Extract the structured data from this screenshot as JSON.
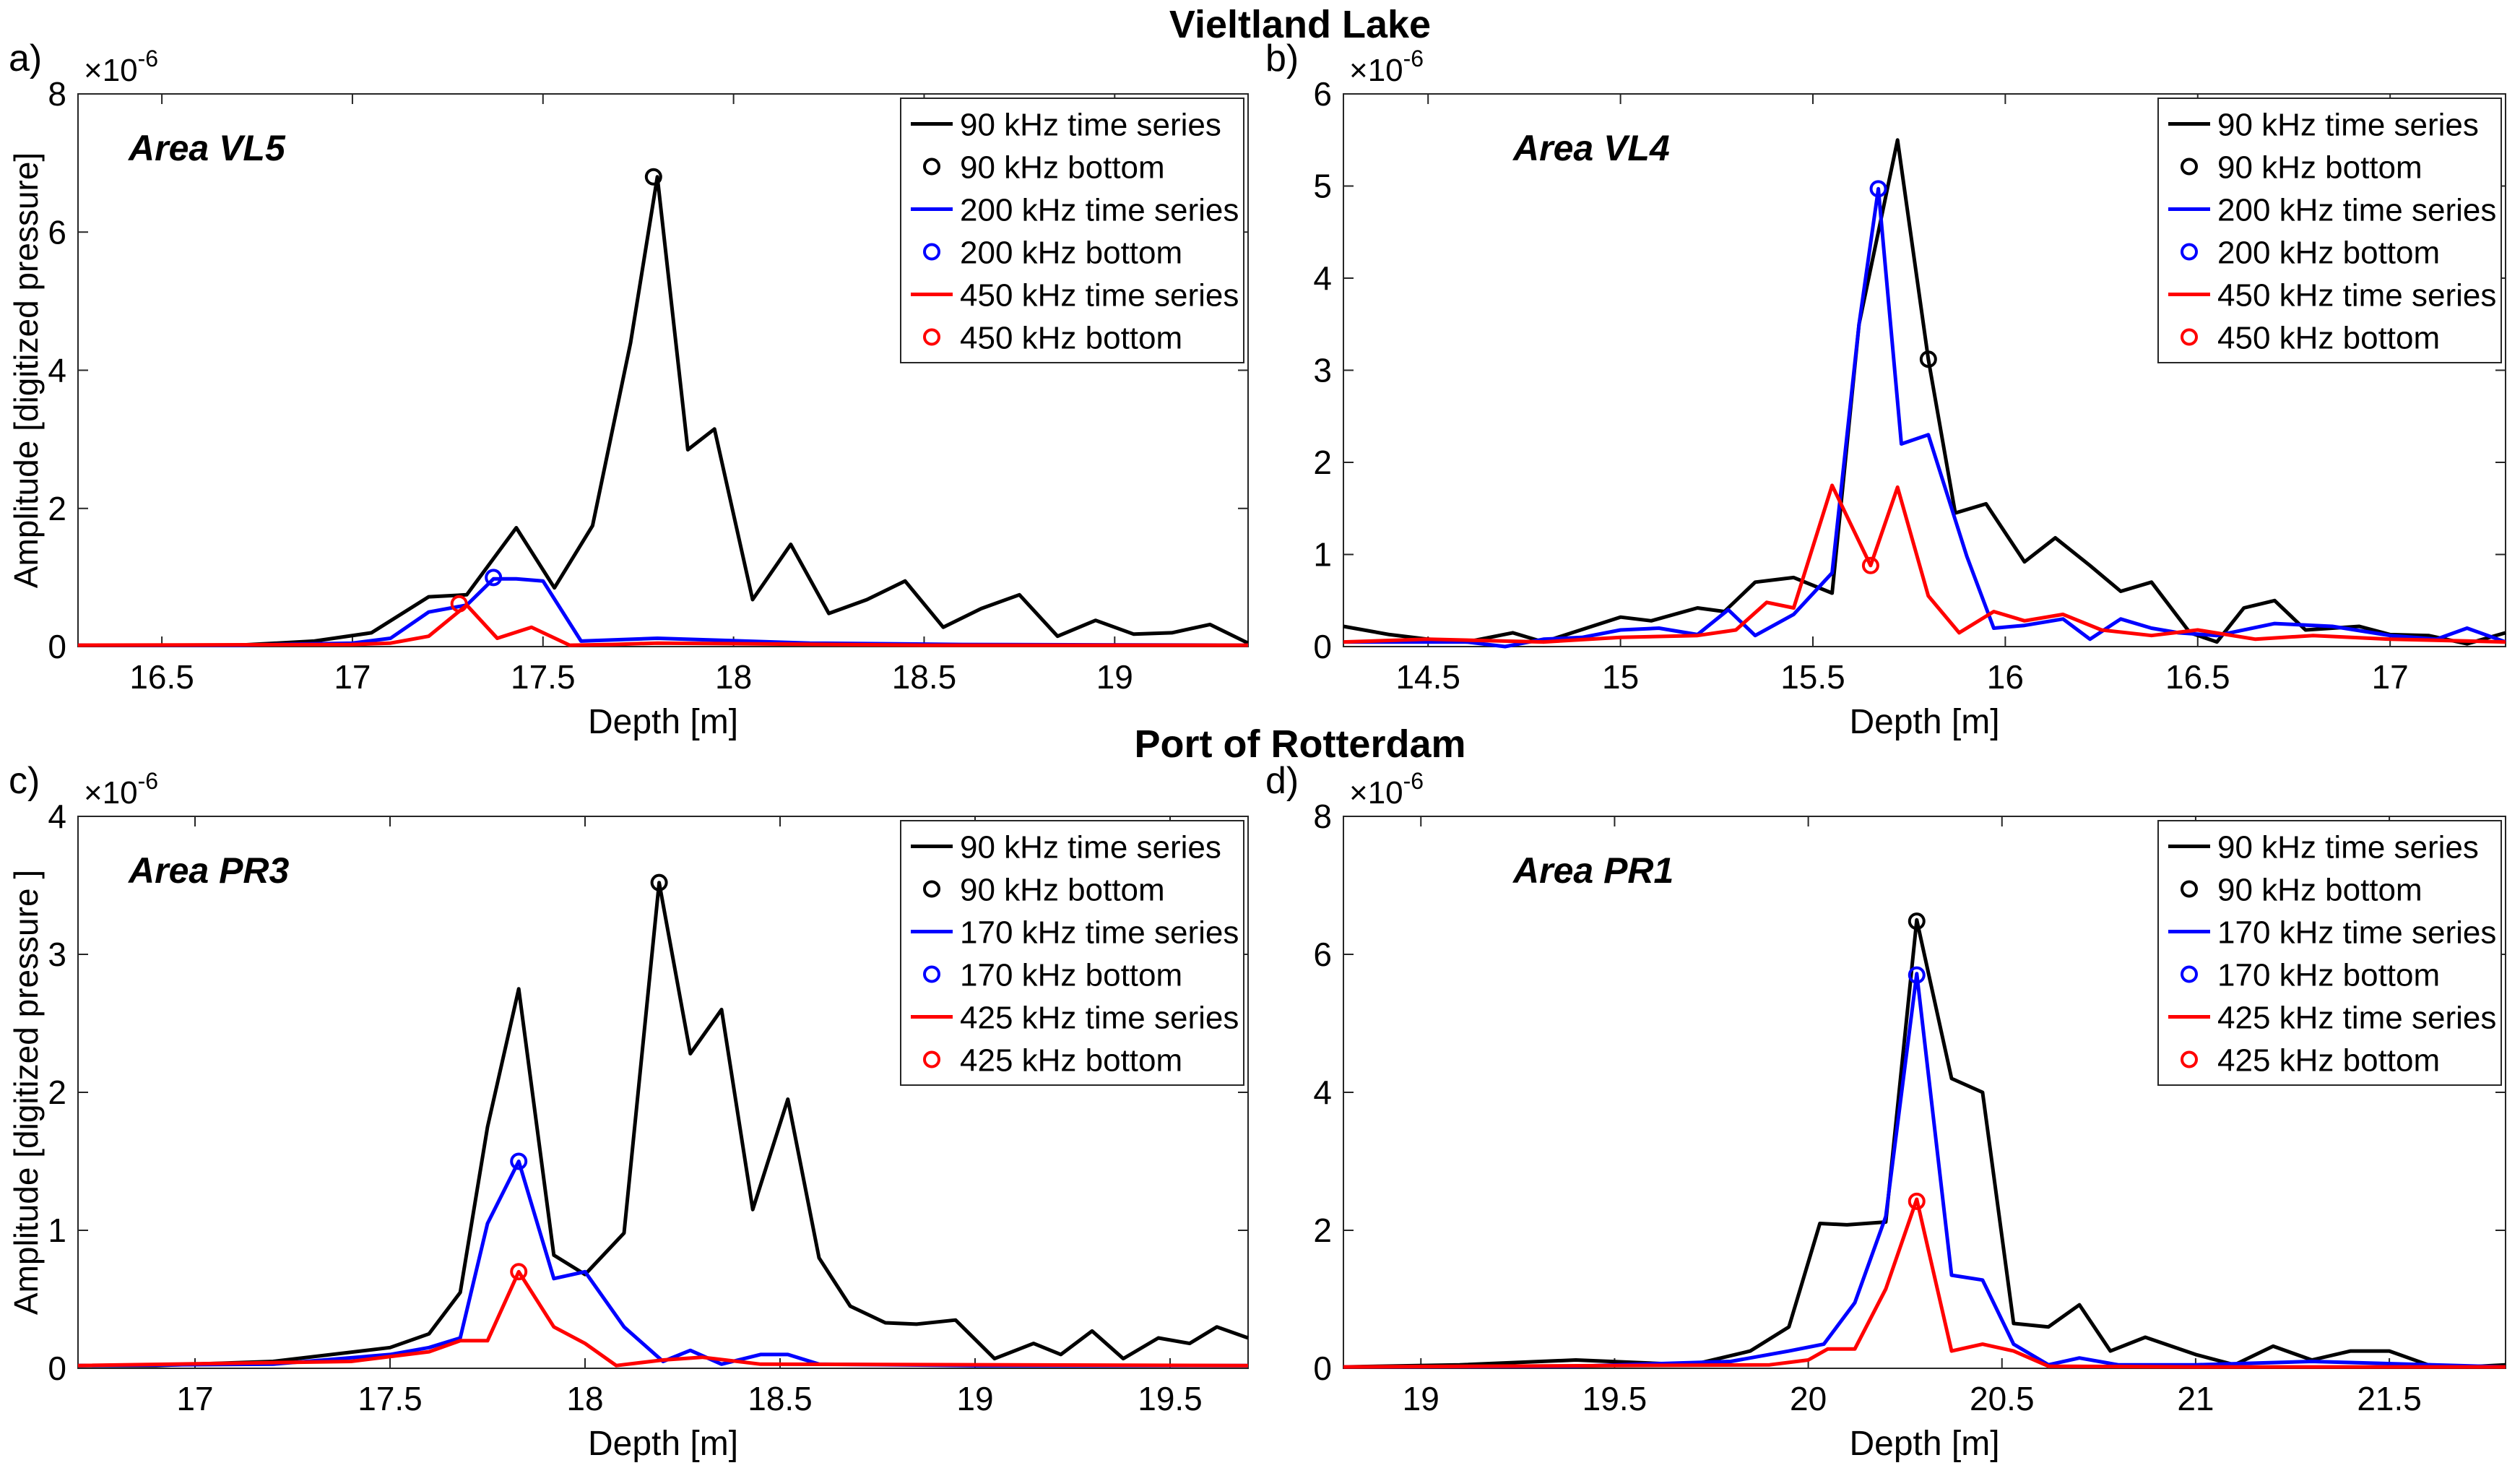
{
  "figure": {
    "group_titles": [
      "Vieltland Lake",
      "Port of Rotterdam"
    ],
    "xlabel": "Depth [m]",
    "ylabel": "Amplitude [digitized pressure]",
    "ylabel_alt": "Amplitude [digitized pressure ]",
    "exponent_label": "×10",
    "exponent_power": "-6"
  },
  "colors": {
    "black": "#000000",
    "blue": "#0000ff",
    "red": "#ff0000"
  },
  "chart_data": [
    {
      "type": "line",
      "panel_label": "a)",
      "area_label": "Area VL5",
      "xlabel": "Depth [m]",
      "ylabel": "Amplitude [digitized pressure]",
      "xlim": [
        16.28,
        19.35
      ],
      "ylim": [
        0,
        8
      ],
      "xticks": [
        16.5,
        17,
        17.5,
        18,
        18.5,
        19
      ],
      "xtick_labels": [
        "16.5",
        "17",
        "17.5",
        "18",
        "18.5",
        "19"
      ],
      "yticks": [
        0,
        2,
        4,
        6,
        8
      ],
      "ytick_labels": [
        "0",
        "2",
        "4",
        "6",
        "8"
      ],
      "y_exponent": "-6",
      "legend_position": "top-right",
      "series": [
        {
          "name": "90 kHz time series",
          "color": "#000000",
          "kind": "line",
          "x": [
            16.28,
            16.5,
            16.7,
            16.9,
            17.05,
            17.2,
            17.3,
            17.43,
            17.53,
            17.63,
            17.73,
            17.8,
            17.88,
            17.95,
            18.05,
            18.15,
            18.25,
            18.35,
            18.45,
            18.55,
            18.65,
            18.75,
            18.85,
            18.95,
            19.05,
            19.15,
            19.25,
            19.35
          ],
          "y": [
            0.02,
            0.02,
            0.02,
            0.08,
            0.2,
            0.72,
            0.75,
            1.72,
            0.85,
            1.75,
            4.4,
            6.8,
            2.85,
            3.15,
            0.68,
            1.48,
            0.48,
            0.68,
            0.95,
            0.28,
            0.55,
            0.75,
            0.15,
            0.38,
            0.18,
            0.2,
            0.32,
            0.05
          ]
        },
        {
          "name": "90 kHz bottom",
          "color": "#000000",
          "kind": "marker",
          "x": [
            17.79
          ],
          "y": [
            6.8
          ]
        },
        {
          "name": "200 kHz time series",
          "color": "#0000ff",
          "kind": "line",
          "x": [
            16.28,
            16.7,
            17.0,
            17.1,
            17.2,
            17.3,
            17.37,
            17.43,
            17.5,
            17.6,
            17.8,
            18.2,
            18.6,
            19.35
          ],
          "y": [
            0.02,
            0.02,
            0.05,
            0.12,
            0.5,
            0.6,
            0.98,
            0.98,
            0.95,
            0.08,
            0.12,
            0.05,
            0.03,
            0.02
          ]
        },
        {
          "name": "200 kHz bottom",
          "color": "#0000ff",
          "kind": "marker",
          "x": [
            17.37
          ],
          "y": [
            1.0
          ]
        },
        {
          "name": "450 kHz time series",
          "color": "#ff0000",
          "kind": "line",
          "x": [
            16.28,
            17.0,
            17.1,
            17.2,
            17.3,
            17.38,
            17.47,
            17.57,
            17.68,
            17.8,
            18.5,
            19.35
          ],
          "y": [
            0.02,
            0.03,
            0.05,
            0.15,
            0.6,
            0.12,
            0.28,
            0.02,
            0.03,
            0.05,
            0.02,
            0.02
          ]
        },
        {
          "name": "450 kHz bottom",
          "color": "#ff0000",
          "kind": "marker",
          "x": [
            17.28
          ],
          "y": [
            0.62
          ]
        }
      ]
    },
    {
      "type": "line",
      "panel_label": "b)",
      "area_label": "Area VL4",
      "xlabel": "Depth [m]",
      "ylabel": "",
      "xlim": [
        14.28,
        17.3
      ],
      "ylim": [
        0,
        6
      ],
      "xticks": [
        14.5,
        15,
        15.5,
        16,
        16.5,
        17
      ],
      "xtick_labels": [
        "14.5",
        "15",
        "15.5",
        "16",
        "16.5",
        "17"
      ],
      "yticks": [
        0,
        1,
        2,
        3,
        4,
        5,
        6
      ],
      "ytick_labels": [
        "0",
        "1",
        "2",
        "3",
        "4",
        "5",
        "6"
      ],
      "y_exponent": "-6",
      "legend_position": "top-right",
      "series": [
        {
          "name": "90 kHz time series",
          "color": "#000000",
          "kind": "line",
          "x": [
            14.28,
            14.4,
            14.5,
            14.6,
            14.72,
            14.8,
            15.0,
            15.08,
            15.2,
            15.27,
            15.35,
            15.45,
            15.55,
            15.62,
            15.72,
            15.8,
            15.87,
            15.95,
            16.05,
            16.13,
            16.22,
            16.3,
            16.38,
            16.48,
            16.55,
            16.62,
            16.7,
            16.78,
            16.85,
            16.92,
            17.0,
            17.1,
            17.2,
            17.3
          ],
          "y": [
            0.22,
            0.13,
            0.08,
            0.05,
            0.15,
            0.05,
            0.32,
            0.28,
            0.42,
            0.38,
            0.7,
            0.75,
            0.58,
            3.5,
            5.5,
            3.12,
            1.45,
            1.55,
            0.92,
            1.18,
            0.88,
            0.6,
            0.7,
            0.15,
            0.05,
            0.42,
            0.5,
            0.18,
            0.2,
            0.22,
            0.13,
            0.12,
            0.03,
            0.15
          ]
        },
        {
          "name": "90 kHz bottom",
          "color": "#000000",
          "kind": "marker",
          "x": [
            15.8
          ],
          "y": [
            3.12
          ]
        },
        {
          "name": "200 kHz time series",
          "color": "#0000ff",
          "kind": "line",
          "x": [
            14.28,
            14.6,
            14.7,
            14.8,
            14.9,
            15.0,
            15.1,
            15.2,
            15.28,
            15.35,
            15.45,
            15.55,
            15.62,
            15.67,
            15.73,
            15.8,
            15.9,
            15.97,
            16.05,
            16.15,
            16.22,
            16.3,
            16.38,
            16.45,
            16.55,
            16.7,
            16.85,
            17.0,
            17.12,
            17.2,
            17.3
          ],
          "y": [
            0.05,
            0.05,
            0.0,
            0.08,
            0.1,
            0.18,
            0.2,
            0.13,
            0.4,
            0.12,
            0.35,
            0.8,
            3.5,
            4.97,
            2.2,
            2.3,
            0.98,
            0.2,
            0.23,
            0.3,
            0.08,
            0.3,
            0.2,
            0.15,
            0.12,
            0.25,
            0.22,
            0.12,
            0.08,
            0.2,
            0.05
          ]
        },
        {
          "name": "200 kHz bottom",
          "color": "#0000ff",
          "kind": "marker",
          "x": [
            15.67
          ],
          "y": [
            4.97
          ]
        },
        {
          "name": "450 kHz time series",
          "color": "#ff0000",
          "kind": "line",
          "x": [
            14.28,
            14.5,
            14.8,
            15.0,
            15.2,
            15.3,
            15.38,
            15.45,
            15.55,
            15.65,
            15.72,
            15.8,
            15.88,
            15.97,
            16.05,
            16.15,
            16.25,
            16.38,
            16.5,
            16.65,
            16.8,
            17.0,
            17.3
          ],
          "y": [
            0.05,
            0.08,
            0.05,
            0.1,
            0.12,
            0.18,
            0.48,
            0.42,
            1.75,
            0.88,
            1.73,
            0.55,
            0.15,
            0.38,
            0.28,
            0.35,
            0.18,
            0.12,
            0.18,
            0.08,
            0.12,
            0.08,
            0.05
          ]
        },
        {
          "name": "450 kHz bottom",
          "color": "#ff0000",
          "kind": "marker",
          "x": [
            15.65
          ],
          "y": [
            0.88
          ]
        }
      ]
    },
    {
      "type": "line",
      "panel_label": "c)",
      "area_label": "Area PR3",
      "xlabel": "Depth [m]",
      "ylabel": "Amplitude [digitized pressure ]",
      "xlim": [
        16.7,
        19.7
      ],
      "ylim": [
        0,
        4
      ],
      "xticks": [
        17,
        17.5,
        18,
        18.5,
        19,
        19.5
      ],
      "xtick_labels": [
        "17",
        "17.5",
        "18",
        "18.5",
        "19",
        "19.5"
      ],
      "yticks": [
        0,
        1,
        2,
        3,
        4
      ],
      "ytick_labels": [
        "0",
        "1",
        "2",
        "3",
        "4"
      ],
      "y_exponent": "-6",
      "legend_position": "top-right",
      "series": [
        {
          "name": "90 kHz time series",
          "color": "#000000",
          "kind": "line",
          "x": [
            16.7,
            16.9,
            17.0,
            17.2,
            17.5,
            17.6,
            17.68,
            17.75,
            17.83,
            17.92,
            18.0,
            18.1,
            18.19,
            18.27,
            18.35,
            18.43,
            18.52,
            18.6,
            18.68,
            18.77,
            18.85,
            18.95,
            19.05,
            19.15,
            19.22,
            19.3,
            19.38,
            19.47,
            19.55,
            19.62,
            19.7
          ],
          "y": [
            0.02,
            0.02,
            0.03,
            0.05,
            0.15,
            0.25,
            0.55,
            1.75,
            2.75,
            0.82,
            0.68,
            0.98,
            3.52,
            2.28,
            2.6,
            1.15,
            1.95,
            0.8,
            0.45,
            0.33,
            0.32,
            0.35,
            0.07,
            0.18,
            0.1,
            0.27,
            0.07,
            0.22,
            0.18,
            0.3,
            0.22
          ]
        },
        {
          "name": "90 kHz bottom",
          "color": "#000000",
          "kind": "marker",
          "x": [
            18.19
          ],
          "y": [
            3.52
          ]
        },
        {
          "name": "170 kHz time series",
          "color": "#0000ff",
          "kind": "line",
          "x": [
            16.7,
            17.2,
            17.5,
            17.6,
            17.68,
            17.75,
            17.83,
            17.92,
            18.0,
            18.1,
            18.2,
            18.27,
            18.35,
            18.45,
            18.52,
            18.6,
            19.0,
            19.7
          ],
          "y": [
            0.02,
            0.03,
            0.1,
            0.15,
            0.22,
            1.05,
            1.5,
            0.65,
            0.7,
            0.3,
            0.05,
            0.13,
            0.03,
            0.1,
            0.1,
            0.03,
            0.02,
            0.02
          ]
        },
        {
          "name": "170 kHz bottom",
          "color": "#0000ff",
          "kind": "marker",
          "x": [
            17.83
          ],
          "y": [
            1.5
          ]
        },
        {
          "name": "425 kHz time series",
          "color": "#ff0000",
          "kind": "line",
          "x": [
            16.7,
            17.4,
            17.6,
            17.68,
            17.75,
            17.83,
            17.92,
            18.0,
            18.08,
            18.2,
            18.3,
            18.45,
            19.7
          ],
          "y": [
            0.02,
            0.05,
            0.12,
            0.2,
            0.2,
            0.7,
            0.3,
            0.18,
            0.02,
            0.06,
            0.08,
            0.03,
            0.02
          ]
        },
        {
          "name": "425 kHz bottom",
          "color": "#ff0000",
          "kind": "marker",
          "x": [
            17.83
          ],
          "y": [
            0.7
          ]
        }
      ]
    },
    {
      "type": "line",
      "panel_label": "d)",
      "area_label": "Area PR1",
      "xlabel": "Depth [m]",
      "ylabel": "",
      "xlim": [
        18.8,
        21.8
      ],
      "ylim": [
        0,
        8
      ],
      "xticks": [
        19,
        19.5,
        20,
        20.5,
        21,
        21.5
      ],
      "xtick_labels": [
        "19",
        "19.5",
        "20",
        "20.5",
        "21",
        "21.5"
      ],
      "yticks": [
        0,
        2,
        4,
        6,
        8
      ],
      "ytick_labels": [
        "0",
        "2",
        "4",
        "6",
        "8"
      ],
      "y_exponent": "-6",
      "legend_position": "top-right",
      "series": [
        {
          "name": "90 kHz time series",
          "color": "#000000",
          "kind": "line",
          "x": [
            18.8,
            19.1,
            19.4,
            19.7,
            19.85,
            19.95,
            20.03,
            20.1,
            20.2,
            20.28,
            20.37,
            20.45,
            20.53,
            20.62,
            20.7,
            20.78,
            20.87,
            21.0,
            21.1,
            21.2,
            21.3,
            21.4,
            21.5,
            21.6,
            21.7,
            21.8
          ],
          "y": [
            0.02,
            0.05,
            0.12,
            0.05,
            0.25,
            0.6,
            2.1,
            2.08,
            2.12,
            6.5,
            4.2,
            4.0,
            0.65,
            0.6,
            0.92,
            0.25,
            0.45,
            0.2,
            0.05,
            0.32,
            0.12,
            0.25,
            0.25,
            0.05,
            0.02,
            0.05
          ]
        },
        {
          "name": "90 kHz bottom",
          "color": "#000000",
          "kind": "marker",
          "x": [
            20.28
          ],
          "y": [
            6.48
          ]
        },
        {
          "name": "170 kHz time series",
          "color": "#0000ff",
          "kind": "line",
          "x": [
            18.8,
            19.4,
            19.8,
            19.95,
            20.04,
            20.12,
            20.2,
            20.28,
            20.37,
            20.45,
            20.53,
            20.62,
            20.7,
            20.8,
            21.0,
            21.3,
            21.8
          ],
          "y": [
            0.02,
            0.03,
            0.1,
            0.25,
            0.35,
            0.95,
            2.2,
            5.72,
            1.35,
            1.28,
            0.35,
            0.05,
            0.15,
            0.05,
            0.05,
            0.1,
            0.02
          ]
        },
        {
          "name": "170 kHz bottom",
          "color": "#0000ff",
          "kind": "marker",
          "x": [
            20.28
          ],
          "y": [
            5.7
          ]
        },
        {
          "name": "425 kHz time series",
          "color": "#ff0000",
          "kind": "line",
          "x": [
            18.8,
            19.9,
            20.0,
            20.05,
            20.12,
            20.2,
            20.28,
            20.37,
            20.45,
            20.53,
            20.62,
            21.0,
            21.8
          ],
          "y": [
            0.02,
            0.05,
            0.12,
            0.28,
            0.28,
            1.15,
            2.45,
            0.25,
            0.35,
            0.25,
            0.03,
            0.02,
            0.02
          ]
        },
        {
          "name": "425 kHz bottom",
          "color": "#ff0000",
          "kind": "marker",
          "x": [
            20.28
          ],
          "y": [
            2.42
          ]
        }
      ]
    }
  ]
}
